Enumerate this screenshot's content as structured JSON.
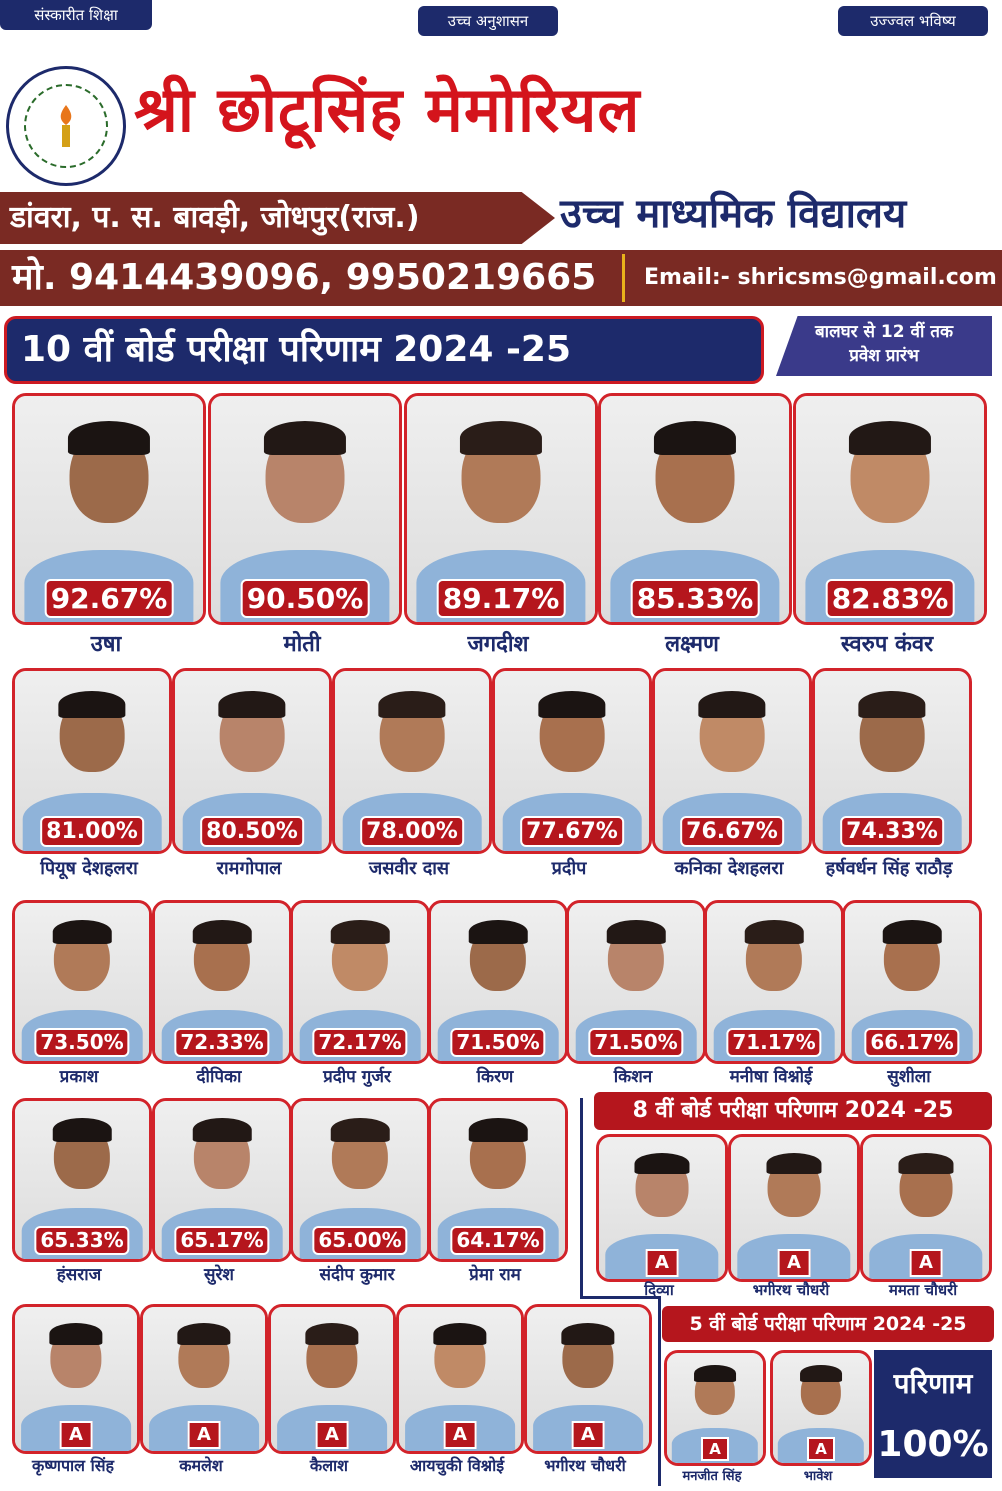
{
  "top_tags": [
    "संस्कारीत शिक्षा",
    "उच्च अनुशासन",
    "उज्ज्वल भविष्य"
  ],
  "logo": {
    "text": "श्री छोटूसिंह मेमोरियल उच्च माध्यमिक विद्यालय डांवरा"
  },
  "school": {
    "name": "श्री छोटूसिंह मेमोरियल",
    "type": "उच्च माध्यमिक विद्यालय",
    "address": "डांवरा, प. स. बावड़ी, जोधपुर(राज.)",
    "phone": "मो. 9414439096, 9950219665",
    "email": "Email:- shricsms@gmail.com"
  },
  "banner_10": "10 वीं बोर्ड परीक्षा परिणाम 2024 -25",
  "admission": {
    "line1": "बालघर से 12 वीं तक",
    "line2": "प्रवेश प्रारंभ"
  },
  "class10_row1": [
    {
      "pct": "92.67%",
      "name": "उषा"
    },
    {
      "pct": "90.50%",
      "name": "मोती"
    },
    {
      "pct": "89.17%",
      "name": "जगदीश"
    },
    {
      "pct": "85.33%",
      "name": "लक्ष्मण"
    },
    {
      "pct": "82.83%",
      "name": "स्वरुप कंवर"
    }
  ],
  "class10_row2": [
    {
      "pct": "81.00%",
      "name": "पियूष देशहलरा"
    },
    {
      "pct": "80.50%",
      "name": "रामगोपाल"
    },
    {
      "pct": "78.00%",
      "name": "जसवीर दास"
    },
    {
      "pct": "77.67%",
      "name": "प्रदीप"
    },
    {
      "pct": "76.67%",
      "name": "कनिका देशहलरा"
    },
    {
      "pct": "74.33%",
      "name": "हर्षवर्धन सिंह राठौड़"
    }
  ],
  "class10_row3": [
    {
      "pct": "73.50%",
      "name": "प्रकाश"
    },
    {
      "pct": "72.33%",
      "name": "दीपिका"
    },
    {
      "pct": "72.17%",
      "name": "प्रदीप गुर्जर"
    },
    {
      "pct": "71.50%",
      "name": "किरण"
    },
    {
      "pct": "71.50%",
      "name": "किशन"
    },
    {
      "pct": "71.17%",
      "name": "मनीषा विश्नोई"
    },
    {
      "pct": "66.17%",
      "name": "सुशीला"
    }
  ],
  "class10_row4": [
    {
      "pct": "65.33%",
      "name": "हंसराज"
    },
    {
      "pct": "65.17%",
      "name": "सुरेश"
    },
    {
      "pct": "65.00%",
      "name": "संदीप कुमार"
    },
    {
      "pct": "64.17%",
      "name": "प्रेमा राम"
    }
  ],
  "class10_row5": [
    {
      "grade": "A",
      "name": "कृष्णपाल सिंह"
    },
    {
      "grade": "A",
      "name": "कमलेश"
    },
    {
      "grade": "A",
      "name": "कैलाश"
    },
    {
      "grade": "A",
      "name": "आयचुकी विश्नोई"
    },
    {
      "grade": "A",
      "name": "भगीरथ चौधरी"
    }
  ],
  "banner_8": "8 वीं बोर्ड परीक्षा परिणाम 2024 -25",
  "class8": [
    {
      "grade": "A",
      "name": "दिव्या"
    },
    {
      "grade": "A",
      "name": "भगीरथ चौधरी"
    },
    {
      "grade": "A",
      "name": "ममता चौधरी"
    }
  ],
  "banner_5": "5 वीं बोर्ड परीक्षा परिणाम 2024 -25",
  "class5": [
    {
      "grade": "A",
      "name": "मनजीत सिंह"
    },
    {
      "grade": "A",
      "name": "भावेश"
    }
  ],
  "result_box": {
    "label": "परिणाम",
    "value": "100%"
  },
  "colors": {
    "navy": "#1d2a6b",
    "red": "#d4141c",
    "maroon": "#7a2a23"
  }
}
